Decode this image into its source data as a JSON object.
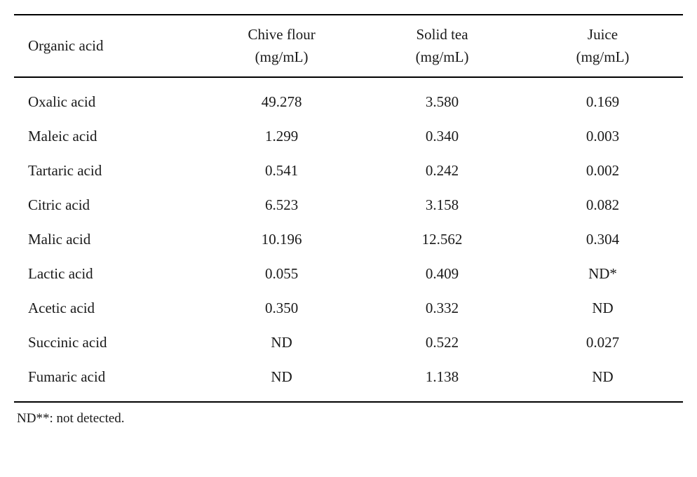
{
  "table": {
    "type": "table",
    "columns": [
      {
        "label": "Organic acid",
        "sublabel": "",
        "align": "left",
        "width": 0.28
      },
      {
        "label": "Chive flour",
        "sublabel": "(mg/mL)",
        "align": "center",
        "width": 0.24
      },
      {
        "label": "Solid tea",
        "sublabel": "(mg/mL)",
        "align": "center",
        "width": 0.24
      },
      {
        "label": "Juice",
        "sublabel": "(mg/mL)",
        "align": "center",
        "width": 0.24
      }
    ],
    "rows": [
      [
        "Oxalic acid",
        "49.278",
        "3.580",
        "0.169"
      ],
      [
        "Maleic acid",
        "1.299",
        "0.340",
        "0.003"
      ],
      [
        "Tartaric acid",
        "0.541",
        "0.242",
        "0.002"
      ],
      [
        "Citric acid",
        "6.523",
        "3.158",
        "0.082"
      ],
      [
        "Malic acid",
        "10.196",
        "12.562",
        "0.304"
      ],
      [
        "Lactic acid",
        "0.055",
        "0.409",
        "ND*"
      ],
      [
        "Acetic acid",
        "0.350",
        "0.332",
        "ND"
      ],
      [
        "Succinic acid",
        "ND",
        "0.522",
        "0.027"
      ],
      [
        "Fumaric acid",
        "ND",
        "1.138",
        "ND"
      ]
    ],
    "border_top_color": "#000000",
    "border_top_width": 2,
    "header_border_bottom_width": 1,
    "body_border_top_width": 2,
    "border_bottom_color": "#000000",
    "border_bottom_width": 2,
    "background_color": "#ffffff",
    "text_color": "#1a1a1a",
    "font_size": 21,
    "font_family": "Georgia, 'Times New Roman', serif",
    "row_padding_v": 12,
    "row_padding_h": 8,
    "first_col_padding_left": 20
  },
  "footnote": "ND**: not detected."
}
